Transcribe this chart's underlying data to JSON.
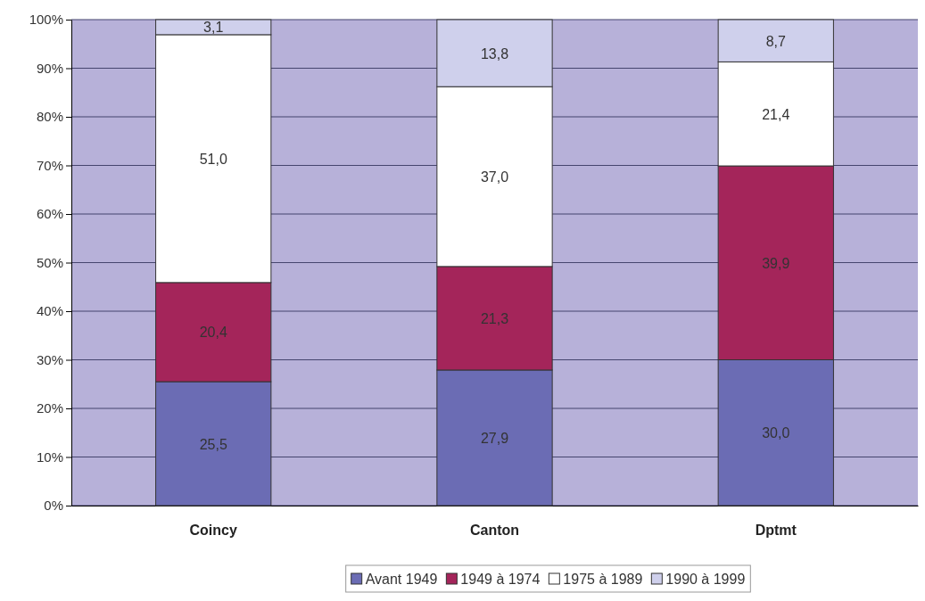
{
  "chart_data": {
    "type": "bar",
    "stacked": true,
    "categories": [
      "Coincy",
      "Canton",
      "Dptmt"
    ],
    "series": [
      {
        "name": "Avant 1949",
        "color": "#6b6cb4",
        "values": [
          25.5,
          27.9,
          30.0
        ],
        "value_labels": [
          "25,5",
          "27,9",
          "30,0"
        ]
      },
      {
        "name": "1949 à 1974",
        "color": "#a4255a",
        "values": [
          20.4,
          21.3,
          39.9
        ],
        "value_labels": [
          "20,4",
          "21,3",
          "39,9"
        ]
      },
      {
        "name": "1975 à 1989",
        "color": "#ffffff",
        "values": [
          51.0,
          37.0,
          21.4
        ],
        "value_labels": [
          "51,0",
          "37,0",
          "21,4"
        ]
      },
      {
        "name": "1990 à 1999",
        "color": "#cfd0ec",
        "values": [
          3.1,
          13.8,
          8.7
        ],
        "value_labels": [
          "3,1",
          "13,8",
          "8,7"
        ]
      }
    ],
    "ylim": [
      0,
      100
    ],
    "yticks": [
      {
        "value": 0,
        "label": "0%"
      },
      {
        "value": 10,
        "label": "10%"
      },
      {
        "value": 20,
        "label": "20%"
      },
      {
        "value": 30,
        "label": "30%"
      },
      {
        "value": 40,
        "label": "40%"
      },
      {
        "value": 50,
        "label": "50%"
      },
      {
        "value": 60,
        "label": "60%"
      },
      {
        "value": 70,
        "label": "70%"
      },
      {
        "value": 80,
        "label": "80%"
      },
      {
        "value": 90,
        "label": "90%"
      },
      {
        "value": 100,
        "label": "100%"
      }
    ],
    "grid": "y",
    "legend": "bottom"
  }
}
